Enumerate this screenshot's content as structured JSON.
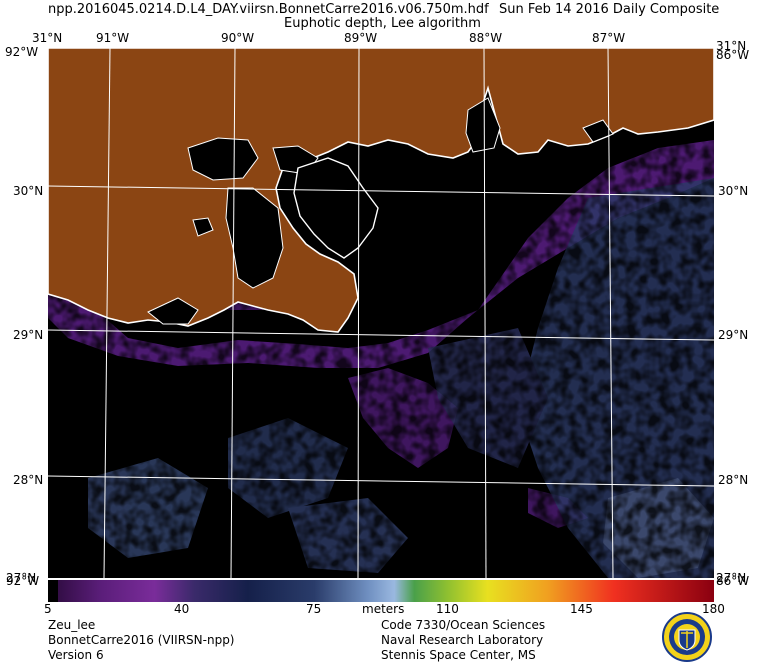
{
  "header": {
    "filename": "npp.2016045.0214.D.L4_DAY.viirsn.BonnetCarre2016.v06.750m.hdf",
    "date": "Sun Feb 14 2016 Daily Composite",
    "product": "Euphotic depth, Lee algorithm"
  },
  "map": {
    "lon_labels": [
      "91°W",
      "90°W",
      "89°W",
      "88°W",
      "87°W"
    ],
    "lat_labels": [
      "30°N",
      "29°N",
      "28°N"
    ],
    "corner_top_left": "31°N",
    "corner_top_right": "31°N",
    "corner_bottom_left": "27°N",
    "corner_bottom_right": "27°N",
    "edge_lon_left": "92°W",
    "edge_lon_right": "86°W",
    "land_color": "#8b4513",
    "water_color": "#000000",
    "coast_color": "#ffffff",
    "grid_color": "#ffffff"
  },
  "colorbar": {
    "ticks": [
      "5",
      "40",
      "75",
      "110",
      "145",
      "180"
    ],
    "unit": "meters",
    "range": [
      5,
      180
    ]
  },
  "footer": {
    "left": [
      "Zeu_lee",
      "BonnetCarre2016 (VIIRSN-npp)",
      "Version 6"
    ],
    "right": [
      "Code 7330/Ocean Sciences",
      "Naval Research Laboratory",
      "Stennis Space Center, MS"
    ]
  }
}
